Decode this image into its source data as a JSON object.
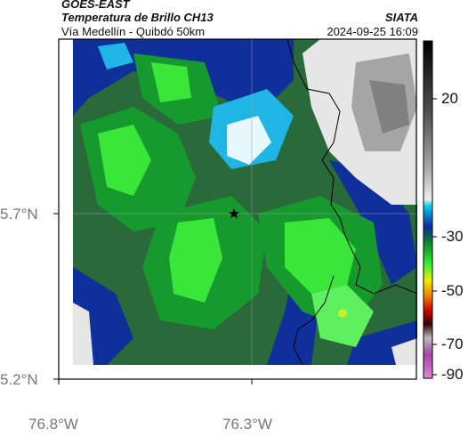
{
  "header": {
    "satellite": "GOES-EAST",
    "product": "Temperatura de Brillo CH13",
    "source": "SIATA",
    "region": "Vía Medellín - Quibdó 50km",
    "timestamp": "2024-09-25 16:09"
  },
  "map": {
    "lat_ticks": [
      {
        "label": "5.7°N",
        "value": 5.7
      },
      {
        "label": "5.2°N",
        "value": 5.2
      }
    ],
    "lon_ticks": [
      {
        "label": "76.8°W",
        "value": -76.8
      },
      {
        "label": "76.3°W",
        "value": -76.3
      }
    ],
    "marker_icon": "star-icon"
  },
  "colorbar": {
    "ticks": [
      {
        "label": "20",
        "value": 20
      },
      {
        "label": "-30",
        "value": -30
      },
      {
        "label": "-50",
        "value": -50
      },
      {
        "label": "-70",
        "value": -70
      },
      {
        "label": "-90",
        "value": -90
      }
    ]
  }
}
